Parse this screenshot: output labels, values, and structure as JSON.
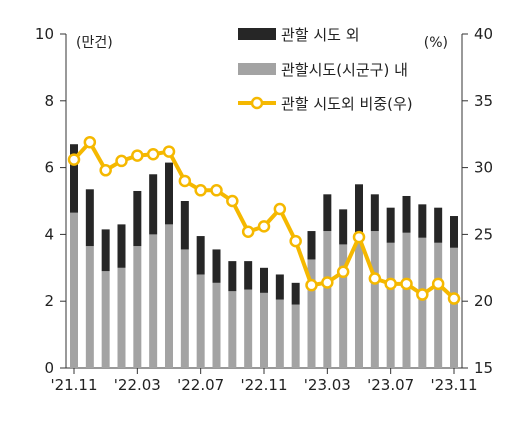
{
  "chart_data": {
    "type": "bar+line",
    "left_axis": {
      "unit": "(만건)",
      "ylim": [
        0,
        10
      ],
      "ticks": [
        "0",
        "2",
        "4",
        "6",
        "8",
        "10"
      ]
    },
    "right_axis": {
      "unit": "(%)",
      "ylim": [
        15,
        40
      ],
      "ticks": [
        "15",
        "20",
        "25",
        "30",
        "35",
        "40"
      ]
    },
    "x_tick_labels": [
      "'21.11",
      "'22.03",
      "'22.07",
      "'22.11",
      "'23.03",
      "'23.07",
      "'23.11"
    ],
    "x_tick_positions": [
      "'21.11",
      "'22.03",
      "'22.07",
      "'22.11",
      "'23.03",
      "'23.07",
      "'23.11"
    ],
    "categories": [
      "'21.11",
      "'21.12",
      "'22.01",
      "'22.02",
      "'22.03",
      "'22.04",
      "'22.05",
      "'22.06",
      "'22.07",
      "'22.08",
      "'22.09",
      "'22.10",
      "'22.11",
      "'22.12",
      "'23.01",
      "'23.02",
      "'23.03",
      "'23.04",
      "'23.05",
      "'23.06",
      "'23.07",
      "'23.08",
      "'23.09",
      "'23.10",
      "'23.11"
    ],
    "series": [
      {
        "name": "관할 시도 외",
        "type": "stacked-bar",
        "color": "#262626",
        "values": [
          2.05,
          1.7,
          1.25,
          1.3,
          1.65,
          1.8,
          1.85,
          1.45,
          1.15,
          1.0,
          0.9,
          0.85,
          0.75,
          0.75,
          0.65,
          0.85,
          1.1,
          1.05,
          1.5,
          1.1,
          1.05,
          1.1,
          1.0,
          1.05,
          0.95
        ]
      },
      {
        "name": "관할시도(시군구) 내",
        "type": "stacked-bar",
        "color": "#a3a3a3",
        "values": [
          4.65,
          3.65,
          2.9,
          3.0,
          3.65,
          4.0,
          4.3,
          3.55,
          2.8,
          2.55,
          2.3,
          2.35,
          2.25,
          2.05,
          1.9,
          3.25,
          4.1,
          3.7,
          4.0,
          4.1,
          3.75,
          4.05,
          3.9,
          3.75,
          3.6
        ]
      },
      {
        "name": "관할 시도외 비중(우)",
        "type": "line",
        "axis": "right",
        "color": "#f5b800",
        "marker_fill": "#ffffff",
        "values": [
          30.6,
          31.9,
          29.8,
          30.5,
          30.9,
          31.0,
          31.2,
          29.0,
          28.3,
          28.3,
          27.5,
          25.2,
          25.6,
          26.9,
          24.5,
          21.2,
          21.4,
          22.2,
          24.8,
          21.7,
          21.3,
          21.3,
          20.5,
          21.3,
          20.2
        ]
      }
    ],
    "grid": false,
    "legend": "top-right"
  }
}
